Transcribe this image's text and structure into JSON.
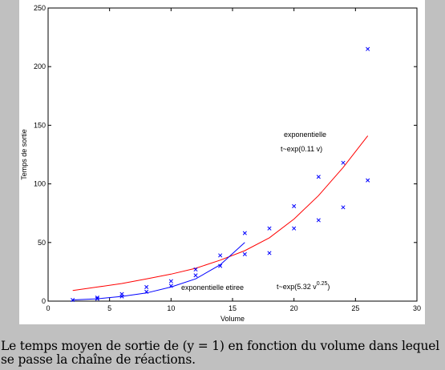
{
  "chart_data": {
    "type": "scatter",
    "xlabel": "Volume",
    "ylabel": "Temps de sortie",
    "xlim": [
      0,
      30
    ],
    "ylim": [
      0,
      250
    ],
    "xticks": [
      0,
      5,
      10,
      15,
      20,
      25,
      30
    ],
    "yticks": [
      0,
      50,
      100,
      150,
      200,
      250
    ],
    "grid": false,
    "markers": {
      "symbol": "x",
      "color": "#0000ff",
      "points": [
        [
          2,
          1
        ],
        [
          4,
          2
        ],
        [
          4,
          3
        ],
        [
          6,
          4
        ],
        [
          6,
          6
        ],
        [
          8,
          8
        ],
        [
          8,
          12
        ],
        [
          10,
          13
        ],
        [
          10,
          17
        ],
        [
          12,
          22
        ],
        [
          12,
          27
        ],
        [
          14,
          30
        ],
        [
          14,
          39
        ],
        [
          16,
          40
        ],
        [
          16,
          58
        ],
        [
          18,
          41
        ],
        [
          18,
          62
        ],
        [
          20,
          62
        ],
        [
          20,
          81
        ],
        [
          22,
          69
        ],
        [
          22,
          106
        ],
        [
          24,
          80
        ],
        [
          24,
          118
        ],
        [
          26,
          103
        ],
        [
          26,
          215
        ]
      ]
    },
    "fits": [
      {
        "color": "#ff0000",
        "x": [
          2,
          4,
          6,
          8,
          10,
          12,
          14,
          16,
          18,
          20,
          22,
          24,
          26
        ],
        "y": [
          9,
          12,
          15,
          19,
          23,
          28,
          35,
          43,
          54,
          70,
          90,
          114,
          141
        ]
      },
      {
        "color": "#0000ff",
        "x": [
          2,
          4,
          6,
          8,
          10,
          12,
          14,
          16
        ],
        "y": [
          1,
          2,
          4,
          7,
          12,
          19,
          31,
          50
        ]
      }
    ],
    "annotations": {
      "red_line1": "exponentielle",
      "red_line2": "t~exp(0.11 v)",
      "blue_line1": "exponentielle etiree",
      "blue_formula": "t~exp(5.32 v",
      "blue_exp": "0.25",
      "blue_close": ")"
    }
  },
  "caption": "Le temps moyen de sortie de (y = 1) en fonction du volume dans lequel se passe la chaîne de réactions."
}
